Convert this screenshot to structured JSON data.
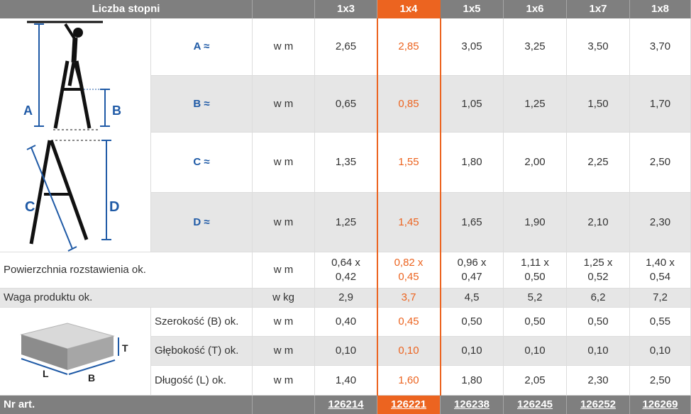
{
  "header": {
    "title": "Liczba stopni",
    "columns": [
      "1x3",
      "1x4",
      "1x5",
      "1x6",
      "1x7",
      "1x8"
    ],
    "highlight_index": 1
  },
  "rows": [
    {
      "label": "A ≈",
      "unit": "w m",
      "values": [
        "2,65",
        "2,85",
        "3,05",
        "3,25",
        "3,50",
        "3,70"
      ]
    },
    {
      "label": "B ≈",
      "unit": "w m",
      "values": [
        "0,65",
        "0,85",
        "1,05",
        "1,25",
        "1,50",
        "1,70"
      ]
    },
    {
      "label": "C ≈",
      "unit": "w m",
      "values": [
        "1,35",
        "1,55",
        "1,80",
        "2,00",
        "2,25",
        "2,50"
      ]
    },
    {
      "label": "D ≈",
      "unit": "w m",
      "values": [
        "1,25",
        "1,45",
        "1,65",
        "1,90",
        "2,10",
        "2,30"
      ]
    }
  ],
  "surface": {
    "label": "Powierzchnia rozstawienia ok.",
    "unit": "w m",
    "values": [
      [
        "0,64 x",
        "0,42"
      ],
      [
        "0,82 x",
        "0,45"
      ],
      [
        "0,96 x",
        "0,47"
      ],
      [
        "1,11 x",
        "0,50"
      ],
      [
        "1,25 x",
        "0,52"
      ],
      [
        "1,40 x",
        "0,54"
      ]
    ]
  },
  "weight": {
    "label": "Waga produktu ok.",
    "unit": "w kg",
    "values": [
      "2,9",
      "3,7",
      "4,5",
      "5,2",
      "6,2",
      "7,2"
    ]
  },
  "package": [
    {
      "label": "Szerokość (B) ok.",
      "unit": "w m",
      "values": [
        "0,40",
        "0,45",
        "0,50",
        "0,50",
        "0,50",
        "0,55"
      ]
    },
    {
      "label": "Głębokość (T) ok.",
      "unit": "w m",
      "values": [
        "0,10",
        "0,10",
        "0,10",
        "0,10",
        "0,10",
        "0,10"
      ]
    },
    {
      "label": "Długość (L) ok.",
      "unit": "w m",
      "values": [
        "1,40",
        "1,60",
        "1,80",
        "2,05",
        "2,30",
        "2,50"
      ]
    }
  ],
  "footer": {
    "label": "Nr art.",
    "articles": [
      "126214",
      "126221",
      "126238",
      "126245",
      "126252",
      "126269"
    ]
  },
  "diagram": {
    "ladder_labels": {
      "a": "A",
      "b": "B",
      "c": "C",
      "d": "D"
    },
    "box_labels": {
      "t": "T",
      "l": "L",
      "b": "B"
    }
  },
  "colors": {
    "accent": "#ec6420",
    "header_gray": "#7f7f7f",
    "row_gray": "#e6e6e6",
    "label_blue": "#1f5aa6"
  }
}
